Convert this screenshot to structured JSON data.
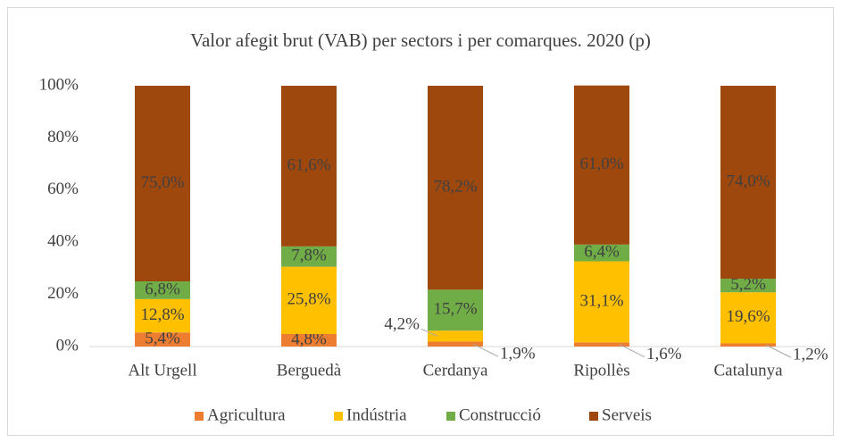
{
  "chart_data": {
    "type": "stacked_bar",
    "title": "Valor afegit brut (VAB) per sectors i per comarques. 2020 (p)",
    "categories": [
      "Alt Urgell",
      "Berguedà",
      "Cerdanya",
      "Ripollès",
      "Catalunya"
    ],
    "series": [
      {
        "name": "Agricultura",
        "color": "#ed7d31",
        "values": [
          5.4,
          4.8,
          1.9,
          1.6,
          1.2
        ],
        "value_labels": [
          "5,4%",
          "4,8%",
          "1,9%",
          "1,6%",
          "1,2%"
        ]
      },
      {
        "name": "Indústria",
        "color": "#ffc000",
        "values": [
          12.8,
          25.8,
          4.2,
          31.1,
          19.6
        ],
        "value_labels": [
          "12,8%",
          "25,8%",
          "4,2%",
          "31,1%",
          "19,6%"
        ]
      },
      {
        "name": "Construcció",
        "color": "#70ad47",
        "values": [
          6.8,
          7.8,
          15.7,
          6.4,
          5.2
        ],
        "value_labels": [
          "6,8%",
          "7,8%",
          "15,7%",
          "6,4%",
          "5,2%"
        ]
      },
      {
        "name": "Serveis",
        "color": "#9e480e",
        "values": [
          75.0,
          61.6,
          78.2,
          61.0,
          74.0
        ],
        "value_labels": [
          "75,0%",
          "61,6%",
          "78,2%",
          "61,0%",
          "74,0%"
        ]
      }
    ],
    "ylim": [
      0,
      100
    ],
    "yticks": [
      {
        "value": 0,
        "label": "0%"
      },
      {
        "value": 20,
        "label": "20%"
      },
      {
        "value": 40,
        "label": "40%"
      },
      {
        "value": 60,
        "label": "60%"
      },
      {
        "value": 80,
        "label": "80%"
      },
      {
        "value": 100,
        "label": "100%"
      }
    ],
    "legend": "bottom"
  }
}
